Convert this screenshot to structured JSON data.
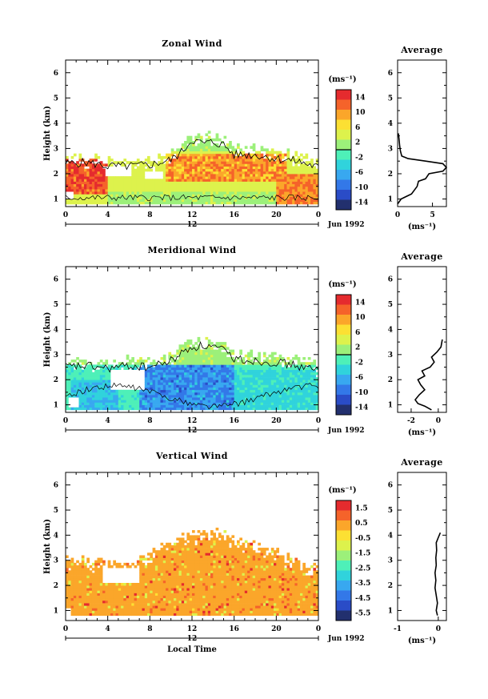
{
  "chart_data": [
    {
      "type": "heatmap",
      "title": "Zonal Wind",
      "ylabel": "Height (km)",
      "xlabel": "",
      "x_ticks": [
        "0",
        "4",
        "8",
        "12",
        "16",
        "20",
        "0"
      ],
      "y_ticks": [
        "1",
        "2",
        "3",
        "4",
        "5",
        "6"
      ],
      "xlim": [
        0,
        24
      ],
      "ylim": [
        0.7,
        6.5
      ],
      "date_day": "12",
      "date_label": "Jun 1992",
      "colorbar_unit": "(ms⁻¹)",
      "colorbar_ticks": [
        "14",
        "10",
        "6",
        "2",
        "-2",
        "-6",
        "-10",
        "-14"
      ],
      "colorbar_range": [
        -16,
        16
      ],
      "data_top": [
        [
          0,
          2.65
        ],
        [
          2,
          2.7
        ],
        [
          4,
          2.55
        ],
        [
          6,
          2.55
        ],
        [
          8,
          2.6
        ],
        [
          10,
          2.8
        ],
        [
          11,
          3.1
        ],
        [
          12,
          3.6
        ],
        [
          13,
          3.45
        ],
        [
          14,
          3.5
        ],
        [
          15,
          3.4
        ],
        [
          16,
          3.0
        ],
        [
          18,
          3.0
        ],
        [
          20,
          2.85
        ],
        [
          22,
          2.75
        ],
        [
          24,
          2.5
        ]
      ],
      "gaps": [
        [
          3.8,
          6.3,
          1.9,
          2.3
        ],
        [
          7.4,
          9.2,
          1.8,
          2.1
        ],
        [
          0,
          0.8,
          1.0,
          1.3
        ]
      ],
      "average": {
        "title": "Average",
        "xlabel": "(ms⁻¹)",
        "x_ticks": [
          "0",
          "5"
        ],
        "xlim": [
          0,
          7
        ],
        "profile": [
          [
            0.0,
            0.8
          ],
          [
            0.5,
            1.0
          ],
          [
            2.0,
            1.2
          ],
          [
            2.8,
            1.5
          ],
          [
            3.0,
            1.7
          ],
          [
            4.0,
            1.8
          ],
          [
            4.5,
            2.0
          ],
          [
            6.5,
            2.1
          ],
          [
            7.0,
            2.25
          ],
          [
            6.5,
            2.4
          ],
          [
            4.0,
            2.5
          ],
          [
            1.5,
            2.6
          ],
          [
            0.6,
            2.7
          ],
          [
            0.4,
            2.9
          ],
          [
            0.3,
            3.1
          ],
          [
            0.2,
            3.4
          ],
          [
            0.1,
            3.6
          ]
        ]
      }
    },
    {
      "type": "heatmap",
      "title": "Meridional Wind",
      "ylabel": "Height (km)",
      "xlabel": "",
      "x_ticks": [
        "0",
        "4",
        "8",
        "12",
        "16",
        "20",
        "0"
      ],
      "y_ticks": [
        "1",
        "2",
        "3",
        "4",
        "5",
        "6"
      ],
      "xlim": [
        0,
        24
      ],
      "ylim": [
        0.7,
        6.5
      ],
      "date_day": "12",
      "date_label": "Jun 1992",
      "colorbar_unit": "(ms⁻¹)",
      "colorbar_ticks": [
        "14",
        "10",
        "6",
        "2",
        "-2",
        "-6",
        "-10",
        "-14"
      ],
      "colorbar_range": [
        -16,
        16
      ],
      "data_top": [
        [
          0,
          2.75
        ],
        [
          2,
          2.8
        ],
        [
          4,
          2.7
        ],
        [
          6,
          2.8
        ],
        [
          8,
          2.75
        ],
        [
          10,
          3.0
        ],
        [
          11,
          3.3
        ],
        [
          12,
          3.55
        ],
        [
          13,
          3.6
        ],
        [
          14,
          3.55
        ],
        [
          15,
          3.4
        ],
        [
          16,
          3.1
        ],
        [
          18,
          3.0
        ],
        [
          20,
          2.95
        ],
        [
          22,
          2.8
        ],
        [
          24,
          2.6
        ]
      ],
      "gaps": [
        [
          4.2,
          7.5,
          1.6,
          2.4
        ],
        [
          0.2,
          1.2,
          0.9,
          1.3
        ]
      ],
      "average": {
        "title": "Average",
        "xlabel": "(ms⁻¹)",
        "x_ticks": [
          "-2",
          "0"
        ],
        "xlim": [
          -3,
          0.6
        ],
        "profile": [
          [
            -0.5,
            0.8
          ],
          [
            -1.0,
            0.95
          ],
          [
            -1.5,
            1.05
          ],
          [
            -1.7,
            1.2
          ],
          [
            -1.4,
            1.4
          ],
          [
            -1.0,
            1.6
          ],
          [
            -1.3,
            1.8
          ],
          [
            -1.5,
            2.0
          ],
          [
            -1.0,
            2.15
          ],
          [
            -1.2,
            2.35
          ],
          [
            -0.6,
            2.5
          ],
          [
            -0.3,
            2.7
          ],
          [
            -0.5,
            2.9
          ],
          [
            -0.1,
            3.1
          ],
          [
            0.2,
            3.3
          ],
          [
            0.3,
            3.6
          ]
        ]
      }
    },
    {
      "type": "heatmap",
      "title": "Vertical Wind",
      "ylabel": "Height (km)",
      "xlabel": "Local Time",
      "x_ticks": [
        "0",
        "4",
        "8",
        "12",
        "16",
        "20",
        "0"
      ],
      "y_ticks": [
        "1",
        "2",
        "3",
        "4",
        "5",
        "6"
      ],
      "xlim": [
        0,
        24
      ],
      "ylim": [
        0.6,
        6.5
      ],
      "date_day": "12",
      "date_label": "Jun 1992",
      "colorbar_unit": "(ms⁻¹)",
      "colorbar_ticks": [
        "1.5",
        "0.5",
        "-0.5",
        "-1.5",
        "-2.5",
        "-3.5",
        "-4.5",
        "-5.5"
      ],
      "colorbar_range": [
        -6,
        2
      ],
      "data_top": [
        [
          0,
          3.0
        ],
        [
          2,
          3.0
        ],
        [
          4,
          2.9
        ],
        [
          6,
          2.9
        ],
        [
          8,
          3.2
        ],
        [
          9,
          3.5
        ],
        [
          10,
          3.7
        ],
        [
          12,
          4.0
        ],
        [
          14,
          4.15
        ],
        [
          16,
          3.9
        ],
        [
          18,
          3.7
        ],
        [
          20,
          3.3
        ],
        [
          22,
          3.0
        ],
        [
          24,
          2.7
        ]
      ],
      "gaps": [
        [
          3.5,
          7.0,
          2.1,
          2.7
        ],
        [
          0,
          0.6,
          0.7,
          1.0
        ]
      ],
      "average": {
        "title": "Average",
        "xlabel": "(ms⁻¹)",
        "x_ticks": [
          "-1",
          "0"
        ],
        "xlim": [
          -1,
          0.2
        ],
        "profile": [
          [
            -0.02,
            0.8
          ],
          [
            -0.05,
            1.0
          ],
          [
            -0.02,
            1.3
          ],
          [
            -0.05,
            1.6
          ],
          [
            -0.08,
            1.9
          ],
          [
            -0.06,
            2.2
          ],
          [
            -0.08,
            2.5
          ],
          [
            -0.05,
            2.8
          ],
          [
            -0.06,
            3.1
          ],
          [
            -0.04,
            3.4
          ],
          [
            -0.05,
            3.7
          ],
          [
            0.0,
            3.9
          ],
          [
            0.05,
            4.1
          ]
        ]
      }
    }
  ],
  "colors": {
    "palette": [
      "#22306e",
      "#2a4cc7",
      "#3378e8",
      "#38a8f0",
      "#30d3dc",
      "#4ef0b8",
      "#9cf07a",
      "#ddf24c",
      "#fce033",
      "#fba62a",
      "#f5632a",
      "#e52b2e"
    ],
    "contour": "#000000"
  }
}
